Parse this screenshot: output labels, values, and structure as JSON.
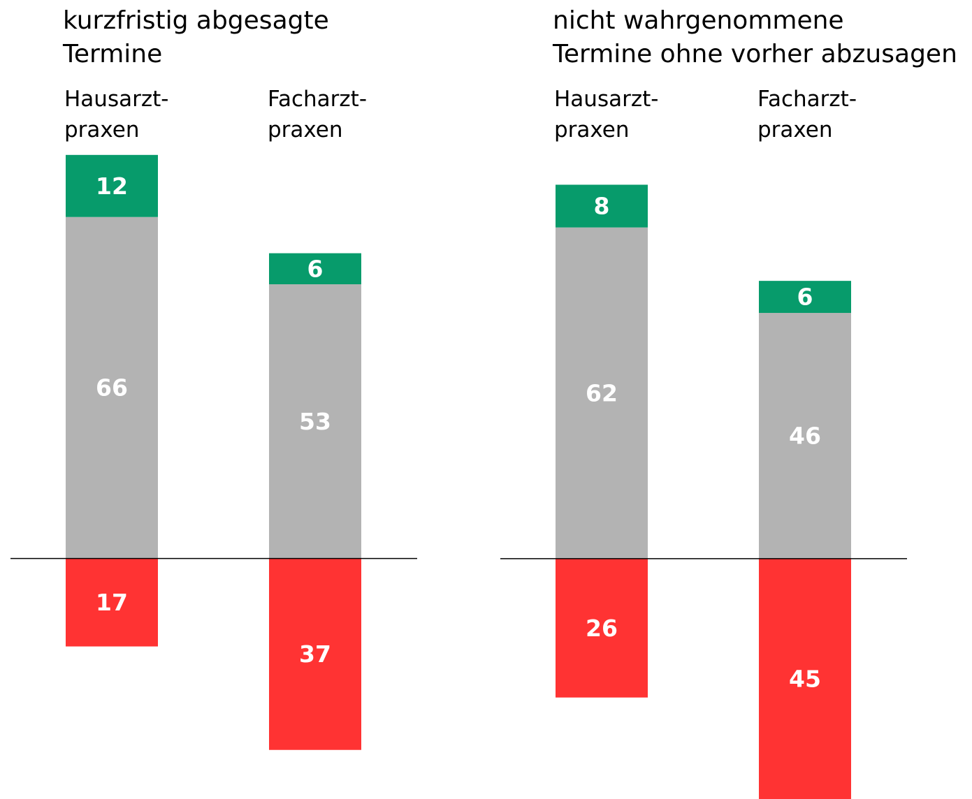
{
  "chart_data": [
    {
      "type": "bar",
      "stacked": true,
      "title": "kurzfristig abgesagte\nTermine",
      "categories": [
        "Hausarzt-\npraxen",
        "Facharzt-\npraxen"
      ],
      "series": [
        {
          "color": "#b3b3b3",
          "values": [
            66,
            53
          ]
        },
        {
          "color": "#079b6b",
          "values": [
            12,
            6
          ]
        },
        {
          "color": "#ff3333",
          "values": [
            -17,
            -37
          ],
          "value_labels": [
            "17",
            "37"
          ]
        }
      ],
      "ylim": [
        -45,
        80
      ]
    },
    {
      "type": "bar",
      "stacked": true,
      "title": "nicht wahrgenommene\nTermine ohne vorher abzusagen",
      "categories": [
        "Hausarzt-\npraxen",
        "Facharzt-\npraxen"
      ],
      "series": [
        {
          "color": "#b3b3b3",
          "values": [
            62,
            46
          ]
        },
        {
          "color": "#079b6b",
          "values": [
            8,
            6
          ]
        },
        {
          "color": "#ff3333",
          "values": [
            -26,
            -45
          ],
          "value_labels": [
            "26",
            "45"
          ]
        }
      ],
      "ylim": [
        -45,
        80
      ]
    }
  ]
}
